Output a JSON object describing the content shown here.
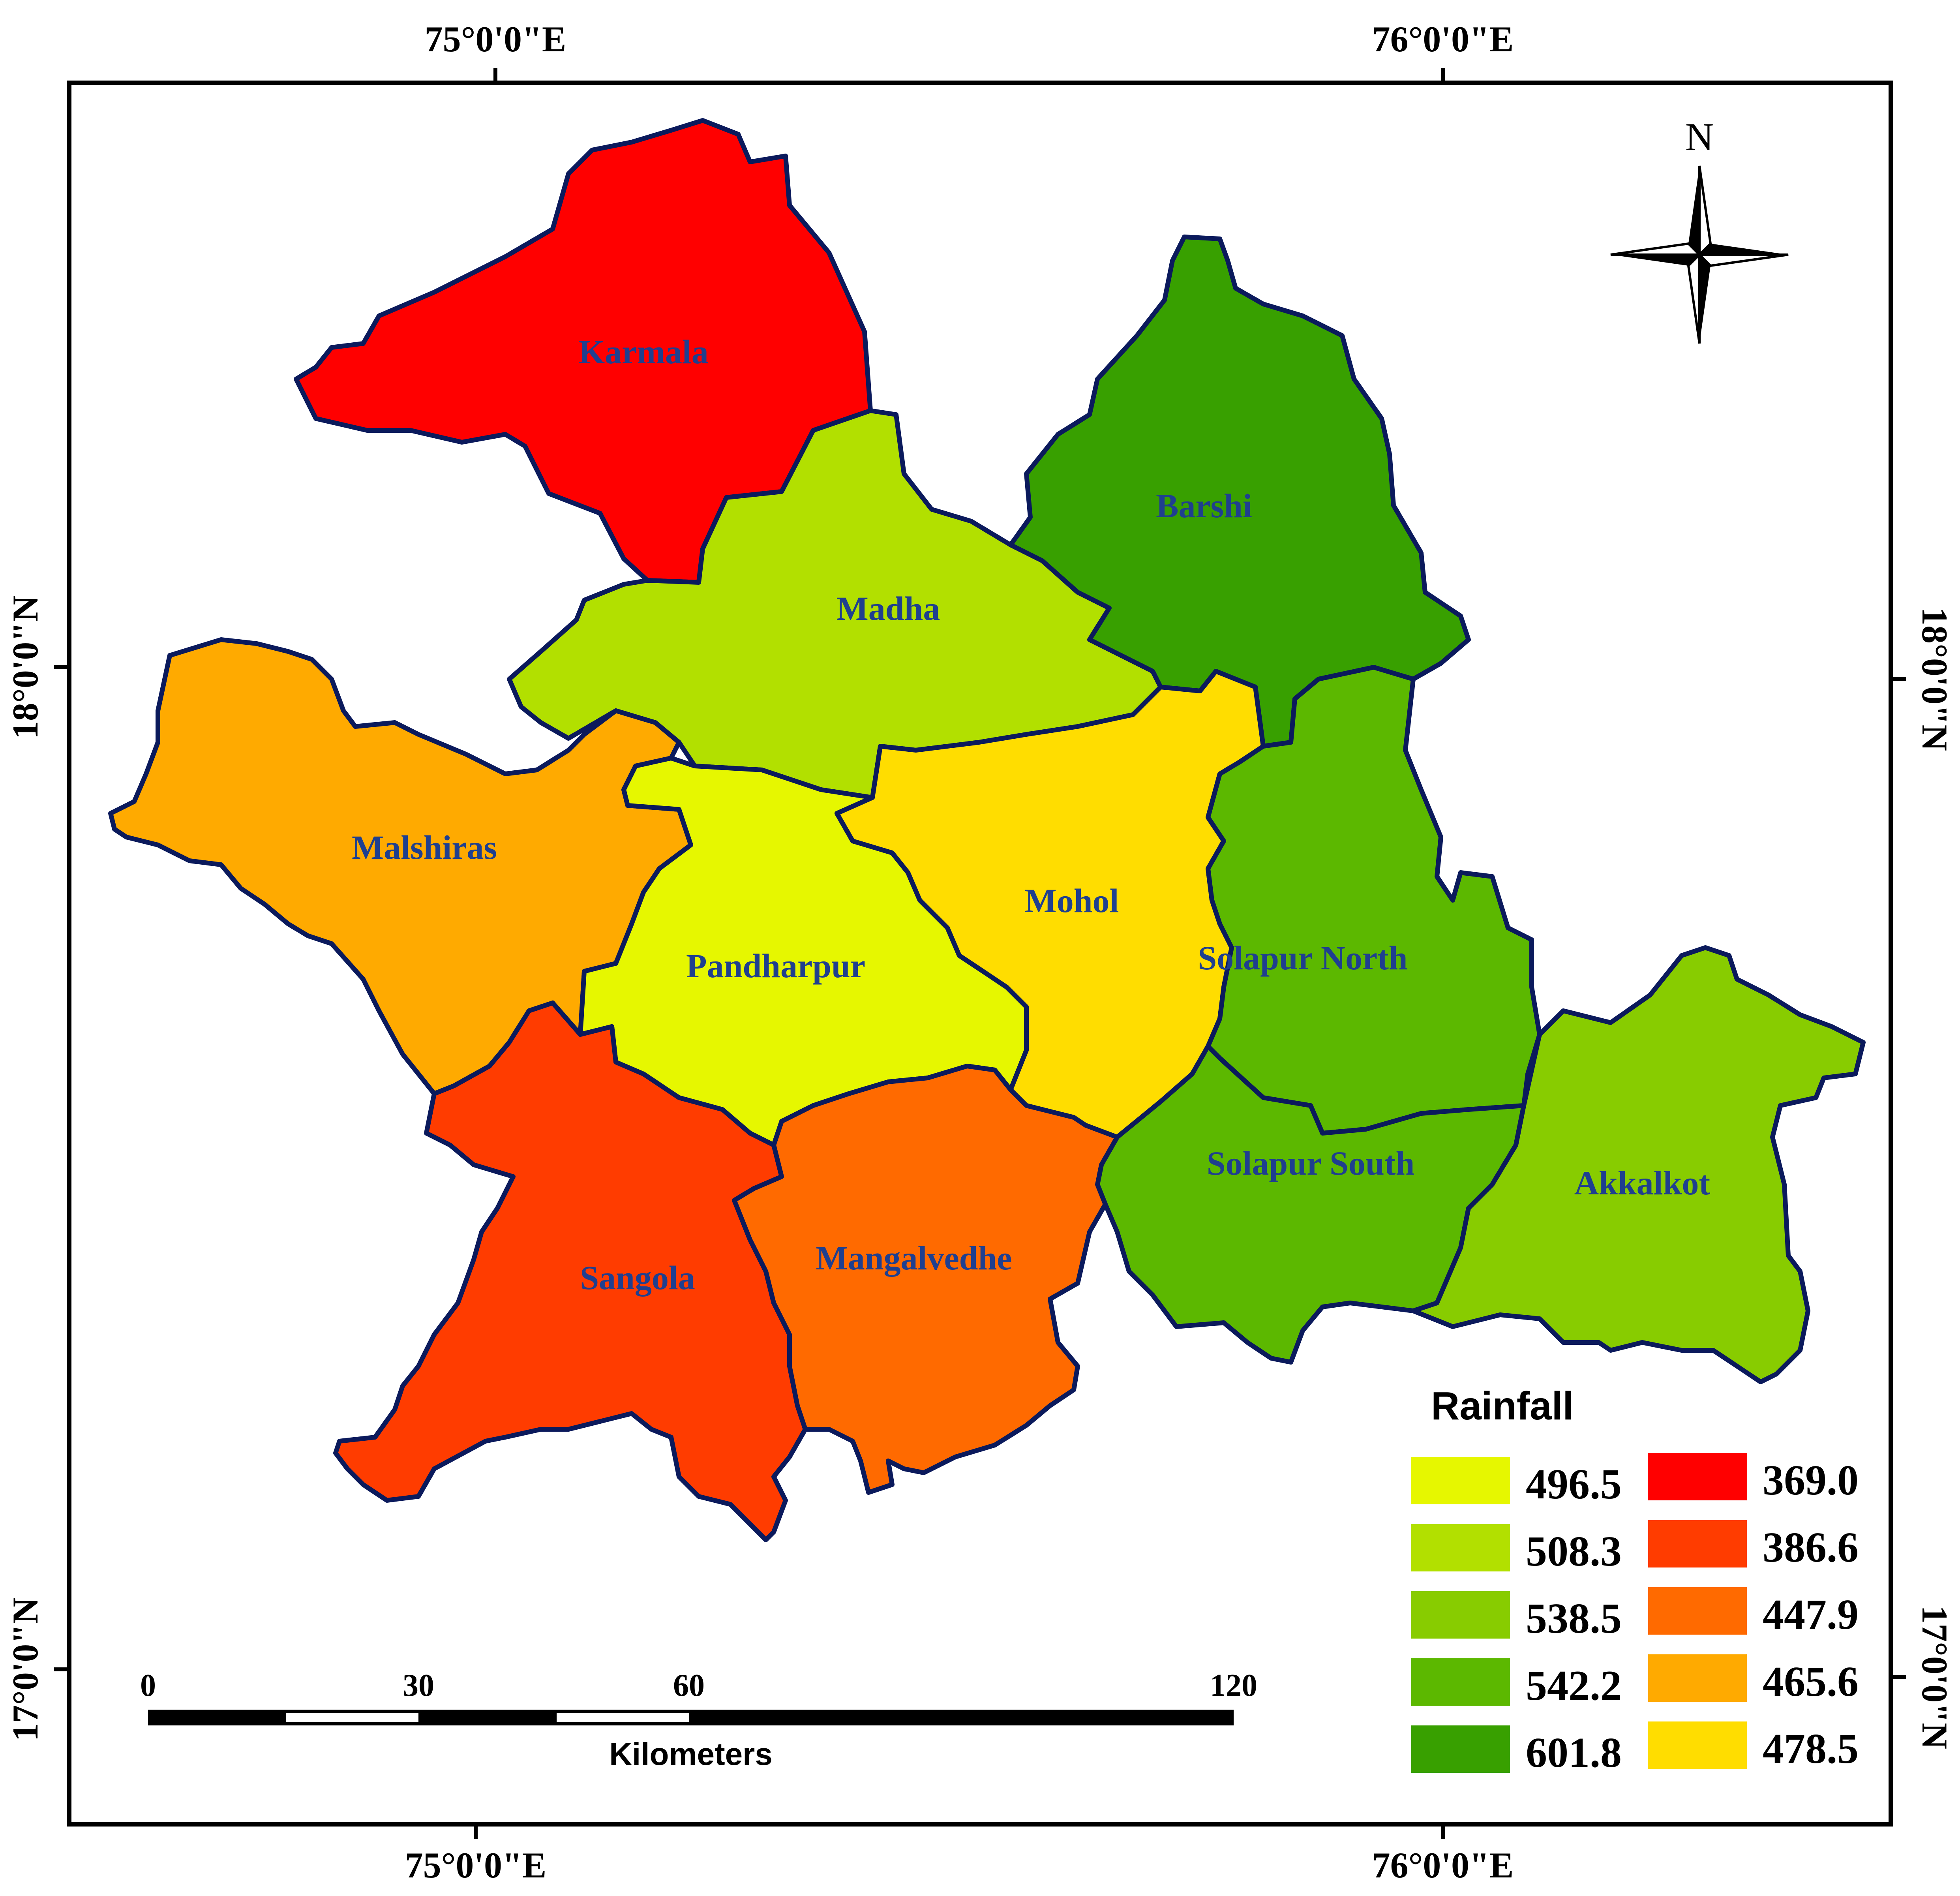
{
  "coordinates": {
    "top_left_lon": "75°0'0\"E",
    "top_right_lon": "76°0'0\"E",
    "bottom_left_lon": "75°0'0\"E",
    "bottom_right_lon": "76°0'0\"E",
    "left_top_lat": "18°0'0\"N",
    "left_bottom_lat": "17°0'0\"N",
    "right_top_lat": "18°0'0\"N",
    "right_bottom_lat": "17°0'0\"N"
  },
  "north_arrow": {
    "label": "N",
    "icon": "compass-rose-icon"
  },
  "districts": [
    {
      "name": "Karmala",
      "color": "#ff0000",
      "rainfall": "369.0"
    },
    {
      "name": "Madha",
      "color": "#b2e000",
      "rainfall": "508.3"
    },
    {
      "name": "Barshi",
      "color": "#38a000",
      "rainfall": "601.8"
    },
    {
      "name": "Malshiras",
      "color": "#ffaa00",
      "rainfall": "465.6"
    },
    {
      "name": "Pandharpur",
      "color": "#e6f700",
      "rainfall": "496.5"
    },
    {
      "name": "Mohol",
      "color": "#ffdd00",
      "rainfall": "478.5"
    },
    {
      "name": "Solapur North",
      "color": "#5cb800",
      "rainfall": "542.2"
    },
    {
      "name": "Solapur South",
      "color": "#5cb800",
      "rainfall": "542.2"
    },
    {
      "name": "Akkalkot",
      "color": "#88cc00",
      "rainfall": "538.5"
    },
    {
      "name": "Sangola",
      "color": "#ff3c00",
      "rainfall": "386.6"
    },
    {
      "name": "Mangalvedhe",
      "color": "#ff6a00",
      "rainfall": "447.9"
    }
  ],
  "legend": {
    "title": "Rainfall",
    "left_column": [
      {
        "value": "496.5",
        "color": "#e6f700"
      },
      {
        "value": "508.3",
        "color": "#b2e000"
      },
      {
        "value": "538.5",
        "color": "#88cc00"
      },
      {
        "value": "542.2",
        "color": "#5cb800"
      },
      {
        "value": "601.8",
        "color": "#38a000"
      }
    ],
    "right_column": [
      {
        "value": "369.0",
        "color": "#ff0000"
      },
      {
        "value": "386.6",
        "color": "#ff3c00"
      },
      {
        "value": "447.9",
        "color": "#ff6a00"
      },
      {
        "value": "465.6",
        "color": "#ffaa00"
      },
      {
        "value": "478.5",
        "color": "#ffdd00"
      }
    ]
  },
  "scale_bar": {
    "ticks": [
      "0",
      "30",
      "60",
      "120"
    ],
    "unit": "Kilometers"
  }
}
